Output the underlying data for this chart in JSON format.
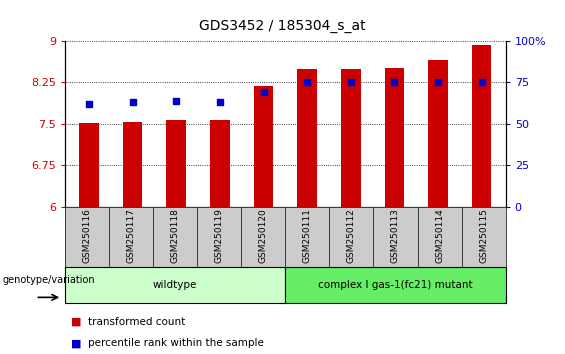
{
  "title": "GDS3452 / 185304_s_at",
  "samples": [
    "GSM250116",
    "GSM250117",
    "GSM250118",
    "GSM250119",
    "GSM250120",
    "GSM250111",
    "GSM250112",
    "GSM250113",
    "GSM250114",
    "GSM250115"
  ],
  "red_values": [
    7.51,
    7.54,
    7.57,
    7.57,
    8.19,
    8.49,
    8.49,
    8.5,
    8.65,
    8.93
  ],
  "blue_values": [
    62,
    63,
    64,
    63,
    69,
    75,
    75,
    75,
    75,
    75
  ],
  "ylim_left": [
    6,
    9
  ],
  "ylim_right": [
    0,
    100
  ],
  "yticks_left": [
    6,
    6.75,
    7.5,
    8.25,
    9
  ],
  "yticks_right": [
    0,
    25,
    50,
    75,
    100
  ],
  "red_color": "#cc0000",
  "blue_color": "#0000cc",
  "bar_width": 0.45,
  "groups": [
    {
      "label": "wildtype",
      "start": 0,
      "end": 5,
      "color": "#ccffcc"
    },
    {
      "label": "complex I gas-1(fc21) mutant",
      "start": 5,
      "end": 10,
      "color": "#66ee66"
    }
  ],
  "legend_items": [
    {
      "color": "#cc0000",
      "label": "transformed count"
    },
    {
      "color": "#0000cc",
      "label": "percentile rank within the sample"
    }
  ],
  "genotype_label": "genotype/variation",
  "tick_bg_color": "#cccccc",
  "plot_bg": "#ffffff"
}
